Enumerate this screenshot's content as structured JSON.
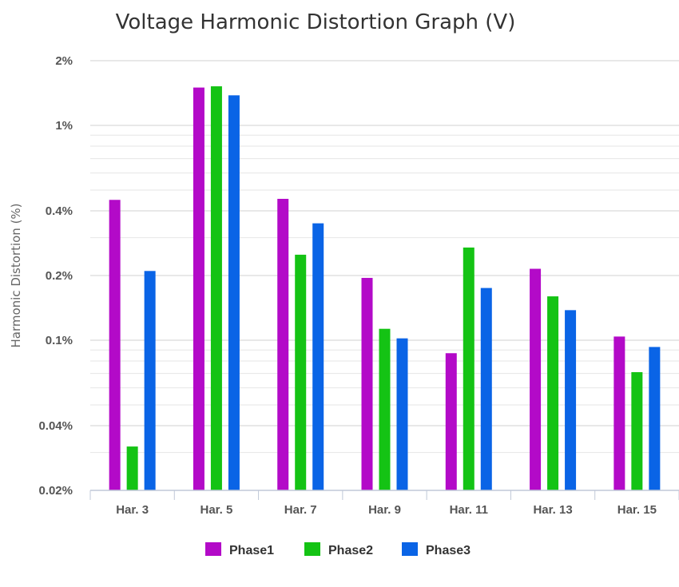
{
  "chart_data": {
    "type": "bar",
    "title": "Voltage Harmonic Distortion Graph (V)",
    "xlabel": "",
    "ylabel": "Harmonic Distortion (%)",
    "yscale": "log",
    "ylim": [
      0.02,
      2
    ],
    "yticks": [
      {
        "value": 2,
        "label": "2%"
      },
      {
        "value": 1,
        "label": "1%"
      },
      {
        "value": 0.4,
        "label": "0.4%"
      },
      {
        "value": 0.2,
        "label": "0.2%"
      },
      {
        "value": 0.1,
        "label": "0.1%"
      },
      {
        "value": 0.04,
        "label": "0.04%"
      },
      {
        "value": 0.02,
        "label": "0.02%"
      }
    ],
    "minor_gridlines": [
      0.03,
      0.05,
      0.06,
      0.07,
      0.08,
      0.09,
      0.3,
      0.5,
      0.6,
      0.7,
      0.8,
      0.9
    ],
    "grid": true,
    "legend_position": "bottom-center",
    "categories": [
      "Har. 3",
      "Har. 5",
      "Har. 7",
      "Har. 9",
      "Har. 11",
      "Har. 13",
      "Har. 15"
    ],
    "series": [
      {
        "name": "Phase1",
        "color": "#b30ac8",
        "values": [
          0.45,
          1.5,
          0.455,
          0.195,
          0.087,
          0.215,
          0.104
        ]
      },
      {
        "name": "Phase2",
        "color": "#14c314",
        "values": [
          0.032,
          1.52,
          0.25,
          0.113,
          0.27,
          0.16,
          0.071
        ]
      },
      {
        "name": "Phase3",
        "color": "#0a64e6",
        "values": [
          0.21,
          1.38,
          0.35,
          0.102,
          0.175,
          0.138,
          0.093
        ]
      }
    ]
  }
}
